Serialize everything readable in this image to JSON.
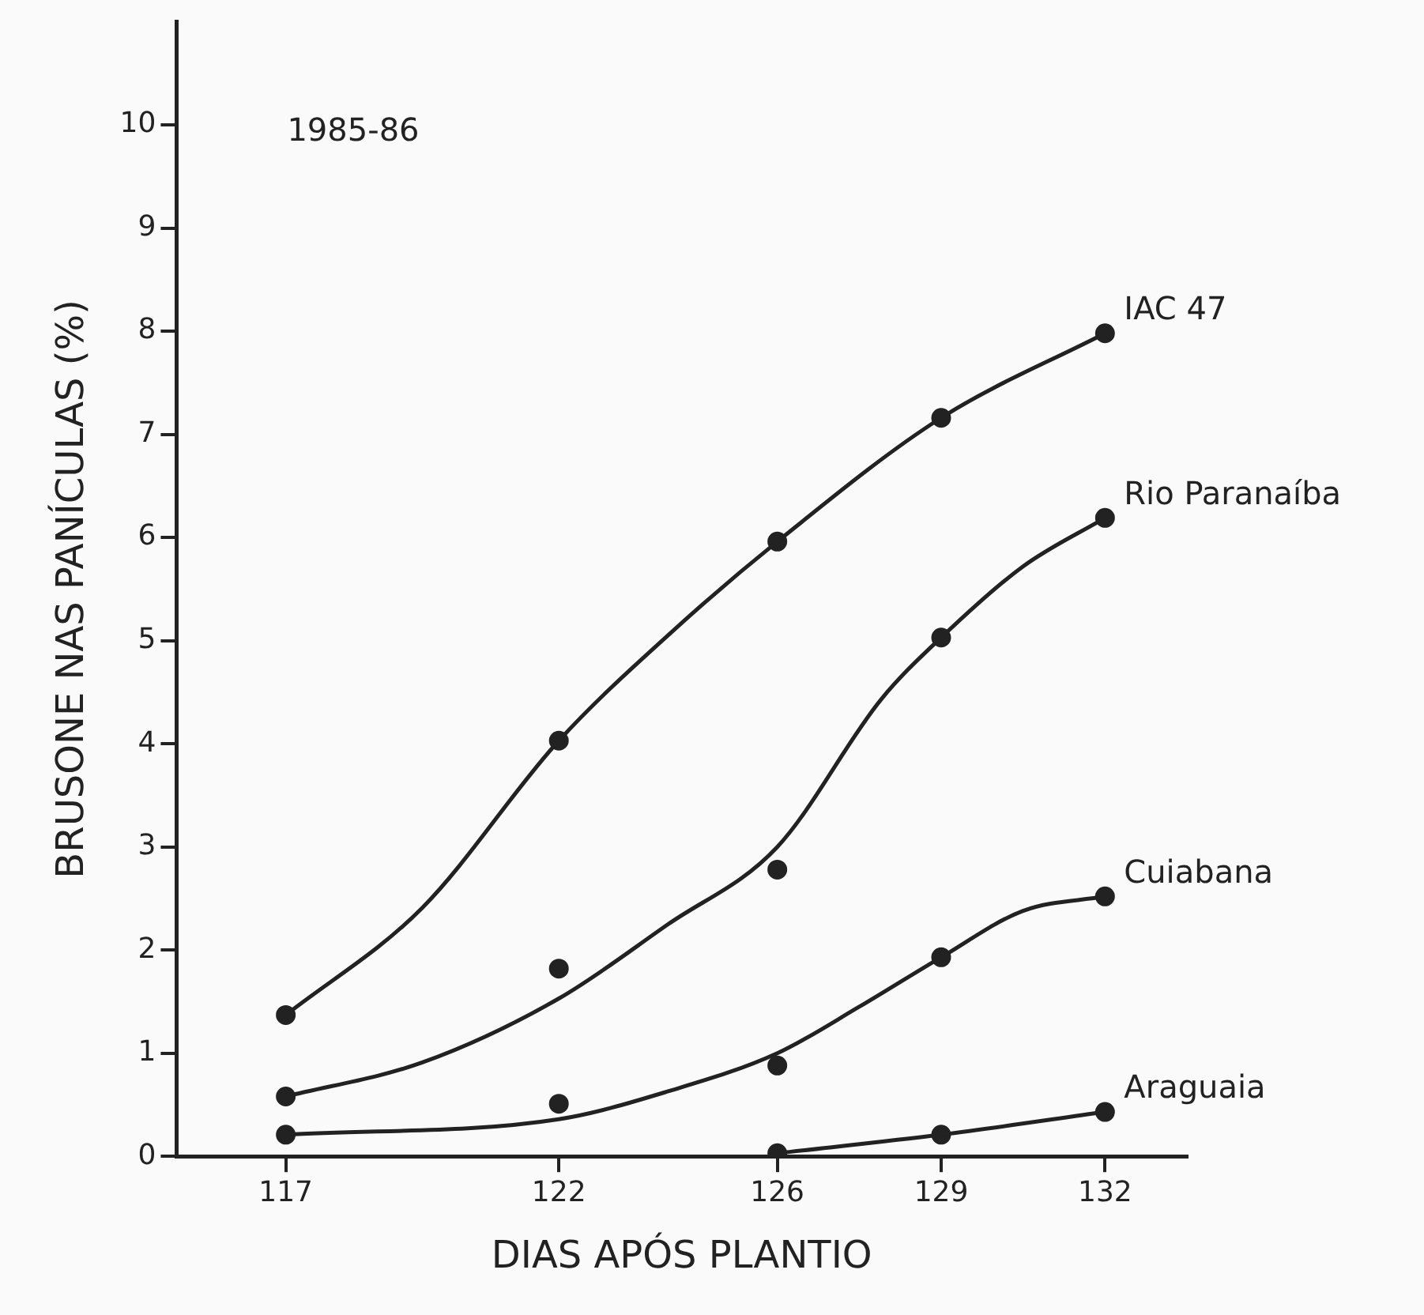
{
  "chart_data": {
    "type": "line",
    "xlabel": "DIAS APÓS PLANTIO",
    "ylabel": "BRUSONE NAS PANÍCULAS (%)",
    "annotations": [
      "1985-86"
    ],
    "xlim": [
      115,
      133.5
    ],
    "xticks": [
      117,
      122,
      126,
      129,
      132
    ],
    "ylim": [
      0,
      11
    ],
    "yticks": [
      0,
      1,
      2,
      3,
      4,
      5,
      6,
      7,
      8,
      9,
      10
    ],
    "grid": false,
    "legend": false,
    "line_style": "solid",
    "marker": "circle",
    "series": [
      {
        "name": "IAC 47",
        "type": "line",
        "marker": "none",
        "color": "#222222",
        "x": [
          117,
          119.5,
          122,
          124.1,
          126,
          129,
          132
        ],
        "values": [
          1.37,
          2.41,
          4.03,
          5.1,
          5.96,
          7.16,
          7.98
        ]
      },
      {
        "name": "Rio Paranaíba",
        "type": "line",
        "marker": "none",
        "color": "#222222",
        "x": [
          117,
          119.5,
          122,
          124,
          126,
          127.9,
          129,
          130.5,
          132
        ],
        "values": [
          0.58,
          0.91,
          1.53,
          2.25,
          3.0,
          4.43,
          5.03,
          5.72,
          6.19
        ]
      },
      {
        "name": "Cuiabana",
        "type": "line",
        "marker": "none",
        "color": "#222222",
        "x": [
          117,
          122,
          124,
          126,
          127.5,
          129,
          130.5,
          132
        ],
        "values": [
          0.21,
          0.36,
          0.63,
          1.0,
          1.45,
          1.93,
          2.38,
          2.52
        ]
      },
      {
        "name": "Araguaia",
        "type": "line",
        "marker": "none",
        "color": "#222222",
        "x": [
          126,
          129,
          132
        ],
        "values": [
          0.03,
          0.21,
          0.43
        ]
      },
      {
        "type": "scatter",
        "color": "#222222",
        "x": [
          117,
          122,
          126,
          129,
          132
        ],
        "values": [
          1.37,
          4.03,
          5.96,
          7.16,
          7.98
        ]
      },
      {
        "type": "scatter",
        "color": "#222222",
        "x": [
          117,
          122,
          126,
          129,
          132
        ],
        "values": [
          0.58,
          1.82,
          2.78,
          5.03,
          6.19
        ]
      },
      {
        "type": "scatter",
        "color": "#222222",
        "x": [
          117,
          122,
          126,
          129,
          132
        ],
        "values": [
          0.21,
          0.51,
          0.88,
          1.93,
          2.52
        ]
      },
      {
        "type": "scatter",
        "color": "#222222",
        "x": [
          126,
          129,
          132
        ],
        "values": [
          0.03,
          0.21,
          0.43
        ]
      }
    ]
  }
}
